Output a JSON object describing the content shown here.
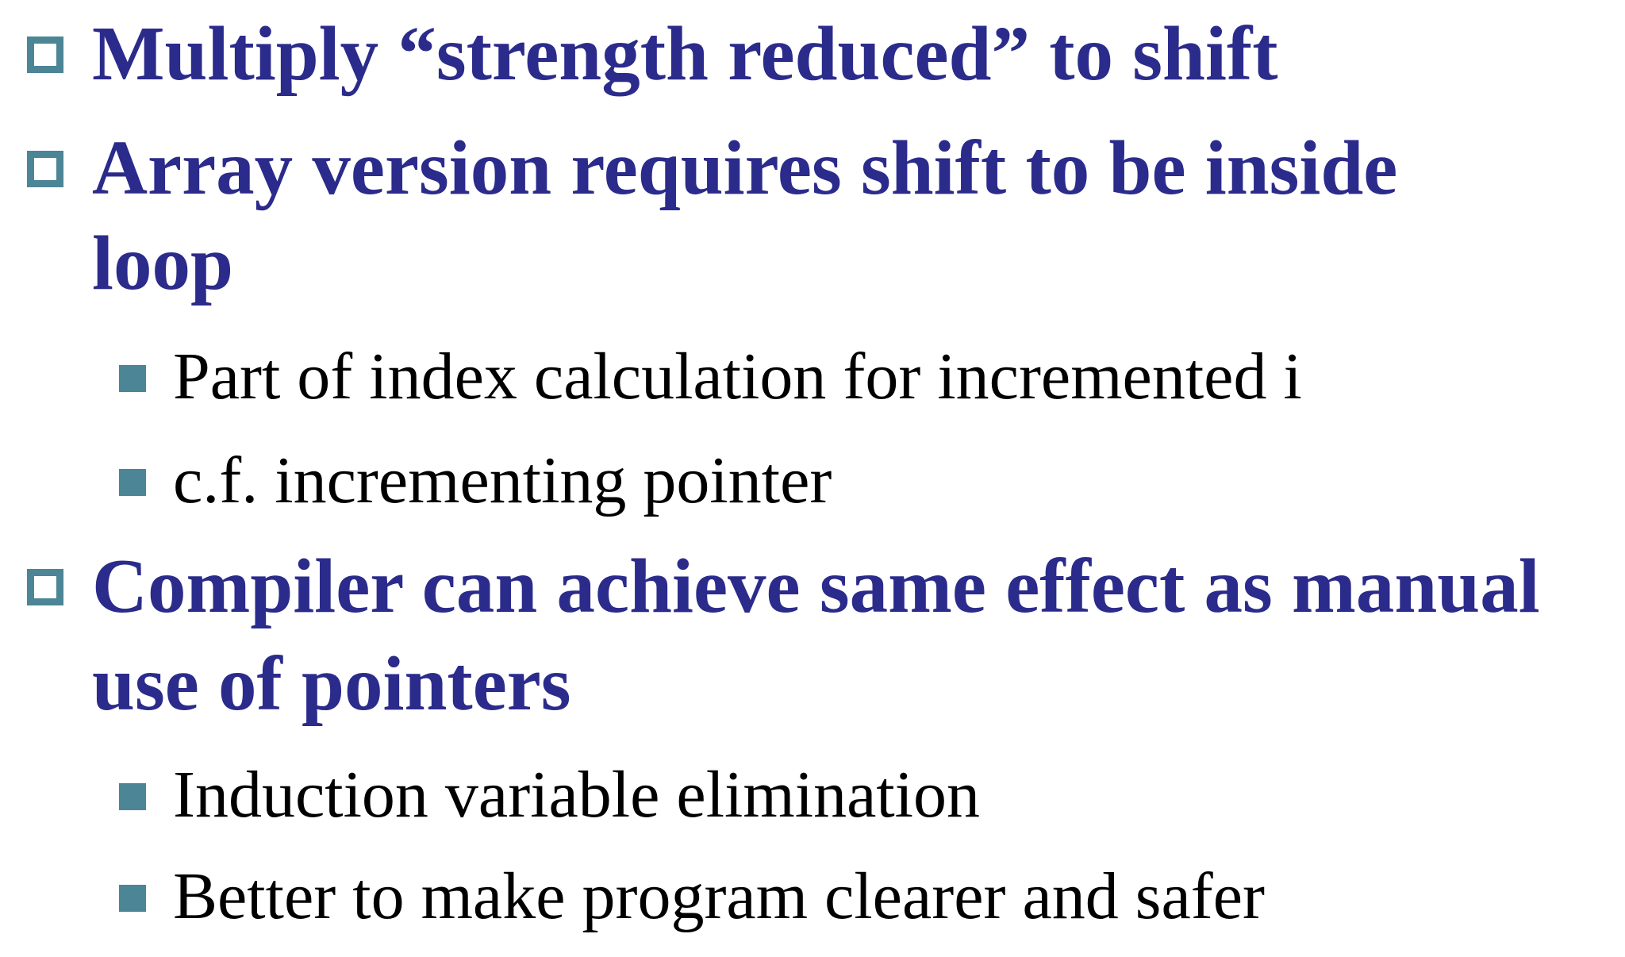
{
  "slide": {
    "bullets": [
      {
        "lines": [
          "Multiply “strength reduced” to shift"
        ],
        "sub_bullets": []
      },
      {
        "lines": [
          "Array version requires shift to be inside",
          "loop"
        ],
        "sub_bullets": [
          "Part of index calculation for incremented i",
          "c.f. incrementing pointer"
        ]
      },
      {
        "lines": [
          "Compiler can achieve same effect as manual",
          "use of pointers"
        ],
        "sub_bullets": [
          "Induction variable elimination",
          "Better to make program clearer and safer"
        ]
      }
    ],
    "colors": {
      "heading_text": "#2b2b8c",
      "marker": "#4b8596",
      "body_text": "#000000"
    },
    "icons": {
      "level1_marker": "hollow-square-bullet-icon",
      "level2_marker": "filled-square-bullet-icon"
    }
  }
}
